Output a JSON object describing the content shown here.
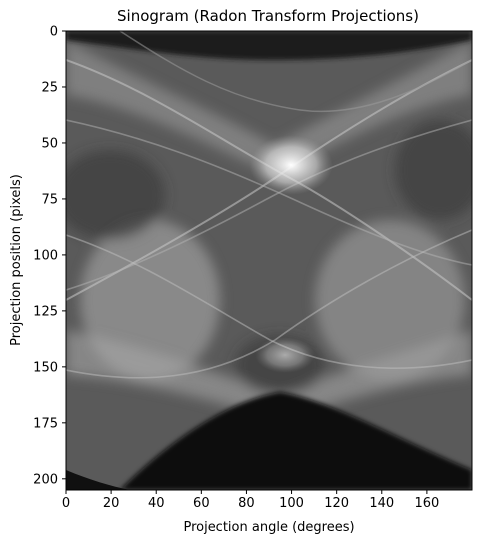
{
  "chart_data": {
    "type": "heatmap",
    "title": "Sinogram (Radon Transform Projections)",
    "xlabel": "Projection angle (degrees)",
    "ylabel": "Projection position (pixels)",
    "xlim": [
      0,
      180
    ],
    "ylim": [
      205,
      0
    ],
    "x_ticks": [
      0,
      20,
      40,
      60,
      80,
      100,
      120,
      140,
      160
    ],
    "y_ticks": [
      0,
      25,
      50,
      75,
      100,
      125,
      150,
      175,
      200
    ],
    "colormap": "gray",
    "grid": false,
    "legend": "none",
    "background_color": "#ffffff",
    "axis_color": "#000000",
    "features": [
      {
        "name": "central-crossing",
        "x": 100,
        "y": 60,
        "intensity": 1.0
      },
      {
        "name": "upper-arc-band",
        "x": 90,
        "y": 20,
        "intensity": 0.3
      },
      {
        "name": "lower-dark-region",
        "x": 95,
        "y": 190,
        "intensity": 0.05
      },
      {
        "name": "mid-lower-crossing",
        "x": 100,
        "y": 145,
        "intensity": 0.7
      }
    ]
  }
}
